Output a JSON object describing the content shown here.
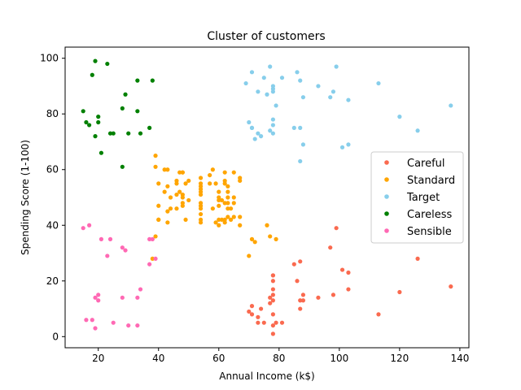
{
  "chart_data": {
    "type": "scatter",
    "title": "Cluster of customers",
    "xlabel": "Annual Income (k$)",
    "ylabel": "Spending Score (1-100)",
    "xlim": [
      9,
      143
    ],
    "ylim": [
      -4,
      104
    ],
    "xticks": [
      20,
      40,
      60,
      80,
      100,
      120,
      140
    ],
    "yticks": [
      0,
      20,
      40,
      60,
      80,
      100
    ],
    "grid": false,
    "legend_position": "center-right",
    "series": [
      {
        "name": "Careful",
        "color": "#fa6a4f",
        "points": [
          [
            70,
            9
          ],
          [
            71,
            11
          ],
          [
            71,
            8
          ],
          [
            73,
            5
          ],
          [
            73,
            7
          ],
          [
            74,
            10
          ],
          [
            75,
            5
          ],
          [
            77,
            12
          ],
          [
            77,
            14
          ],
          [
            78,
            4
          ],
          [
            78,
            13
          ],
          [
            78,
            8
          ],
          [
            78,
            15
          ],
          [
            78,
            1
          ],
          [
            78,
            17
          ],
          [
            78,
            20
          ],
          [
            78,
            22
          ],
          [
            78,
            22
          ],
          [
            79,
            5
          ],
          [
            81,
            5
          ],
          [
            85,
            26
          ],
          [
            86,
            20
          ],
          [
            87,
            10
          ],
          [
            87,
            13
          ],
          [
            87,
            27
          ],
          [
            88,
            13
          ],
          [
            88,
            15
          ],
          [
            93,
            14
          ],
          [
            97,
            32
          ],
          [
            98,
            15
          ],
          [
            99,
            39
          ],
          [
            101,
            24
          ],
          [
            103,
            17
          ],
          [
            103,
            23
          ],
          [
            113,
            8
          ],
          [
            120,
            16
          ],
          [
            126,
            28
          ],
          [
            137,
            18
          ]
        ]
      },
      {
        "name": "Standard",
        "color": "#ffa500",
        "points": [
          [
            39,
            65
          ],
          [
            39,
            61
          ],
          [
            40,
            55
          ],
          [
            40,
            47
          ],
          [
            40,
            42
          ],
          [
            40,
            42
          ],
          [
            42,
            52
          ],
          [
            42,
            60
          ],
          [
            43,
            54
          ],
          [
            43,
            60
          ],
          [
            43,
            45
          ],
          [
            43,
            41
          ],
          [
            44,
            50
          ],
          [
            44,
            46
          ],
          [
            46,
            51
          ],
          [
            46,
            46
          ],
          [
            46,
            56
          ],
          [
            46,
            55
          ],
          [
            47,
            52
          ],
          [
            47,
            59
          ],
          [
            48,
            51
          ],
          [
            48,
            59
          ],
          [
            48,
            50
          ],
          [
            48,
            48
          ],
          [
            48,
            59
          ],
          [
            48,
            47
          ],
          [
            49,
            55
          ],
          [
            49,
            42
          ],
          [
            50,
            49
          ],
          [
            50,
            56
          ],
          [
            54,
            47
          ],
          [
            54,
            54
          ],
          [
            54,
            53
          ],
          [
            54,
            48
          ],
          [
            54,
            52
          ],
          [
            54,
            42
          ],
          [
            54,
            51
          ],
          [
            54,
            55
          ],
          [
            54,
            41
          ],
          [
            54,
            44
          ],
          [
            54,
            57
          ],
          [
            54,
            46
          ],
          [
            57,
            58
          ],
          [
            57,
            55
          ],
          [
            58,
            60
          ],
          [
            58,
            46
          ],
          [
            59,
            55
          ],
          [
            59,
            41
          ],
          [
            60,
            49
          ],
          [
            60,
            40
          ],
          [
            60,
            42
          ],
          [
            60,
            52
          ],
          [
            60,
            47
          ],
          [
            60,
            50
          ],
          [
            61,
            42
          ],
          [
            61,
            49
          ],
          [
            62,
            41
          ],
          [
            62,
            48
          ],
          [
            62,
            59
          ],
          [
            62,
            55
          ],
          [
            62,
            56
          ],
          [
            62,
            42
          ],
          [
            63,
            50
          ],
          [
            63,
            46
          ],
          [
            63,
            43
          ],
          [
            63,
            48
          ],
          [
            63,
            52
          ],
          [
            63,
            54
          ],
          [
            64,
            42
          ],
          [
            64,
            46
          ],
          [
            65,
            48
          ],
          [
            65,
            50
          ],
          [
            65,
            43
          ],
          [
            65,
            59
          ],
          [
            67,
            43
          ],
          [
            67,
            57
          ],
          [
            67,
            56
          ],
          [
            67,
            40
          ],
          [
            72,
            34
          ],
          [
            71,
            35
          ],
          [
            76,
            40
          ],
          [
            77,
            36
          ],
          [
            79,
            35
          ],
          [
            70,
            29
          ],
          [
            39,
            36
          ],
          [
            38,
            28
          ]
        ]
      },
      {
        "name": "Target",
        "color": "#87ceeb",
        "points": [
          [
            69,
            91
          ],
          [
            70,
            77
          ],
          [
            71,
            95
          ],
          [
            71,
            75
          ],
          [
            71,
            75
          ],
          [
            72,
            71
          ],
          [
            73,
            88
          ],
          [
            73,
            73
          ],
          [
            74,
            72
          ],
          [
            75,
            93
          ],
          [
            76,
            87
          ],
          [
            77,
            97
          ],
          [
            77,
            74
          ],
          [
            78,
            90
          ],
          [
            78,
            88
          ],
          [
            78,
            76
          ],
          [
            78,
            89
          ],
          [
            78,
            78
          ],
          [
            78,
            73
          ],
          [
            79,
            83
          ],
          [
            81,
            93
          ],
          [
            85,
            75
          ],
          [
            86,
            95
          ],
          [
            87,
            63
          ],
          [
            87,
            75
          ],
          [
            87,
            92
          ],
          [
            88,
            86
          ],
          [
            88,
            69
          ],
          [
            93,
            90
          ],
          [
            97,
            86
          ],
          [
            98,
            88
          ],
          [
            99,
            97
          ],
          [
            101,
            68
          ],
          [
            103,
            85
          ],
          [
            103,
            69
          ],
          [
            113,
            91
          ],
          [
            120,
            79
          ],
          [
            126,
            74
          ],
          [
            137,
            83
          ]
        ]
      },
      {
        "name": "Careless",
        "color": "#008000",
        "points": [
          [
            15,
            81
          ],
          [
            16,
            77
          ],
          [
            17,
            76
          ],
          [
            18,
            94
          ],
          [
            19,
            99
          ],
          [
            19,
            72
          ],
          [
            20,
            77
          ],
          [
            20,
            79
          ],
          [
            21,
            66
          ],
          [
            23,
            98
          ],
          [
            24,
            73
          ],
          [
            25,
            73
          ],
          [
            28,
            82
          ],
          [
            28,
            61
          ],
          [
            29,
            87
          ],
          [
            30,
            73
          ],
          [
            33,
            92
          ],
          [
            33,
            81
          ],
          [
            34,
            73
          ],
          [
            37,
            75
          ],
          [
            38,
            92
          ]
        ]
      },
      {
        "name": "Sensible",
        "color": "#ff69b4",
        "points": [
          [
            15,
            39
          ],
          [
            16,
            6
          ],
          [
            17,
            40
          ],
          [
            18,
            6
          ],
          [
            19,
            3
          ],
          [
            19,
            14
          ],
          [
            20,
            15
          ],
          [
            20,
            13
          ],
          [
            21,
            35
          ],
          [
            23,
            29
          ],
          [
            24,
            35
          ],
          [
            25,
            5
          ],
          [
            28,
            14
          ],
          [
            28,
            32
          ],
          [
            29,
            31
          ],
          [
            30,
            4
          ],
          [
            33,
            4
          ],
          [
            33,
            14
          ],
          [
            34,
            17
          ],
          [
            37,
            26
          ],
          [
            38,
            35
          ],
          [
            39,
            28
          ],
          [
            37,
            35
          ]
        ]
      }
    ]
  }
}
